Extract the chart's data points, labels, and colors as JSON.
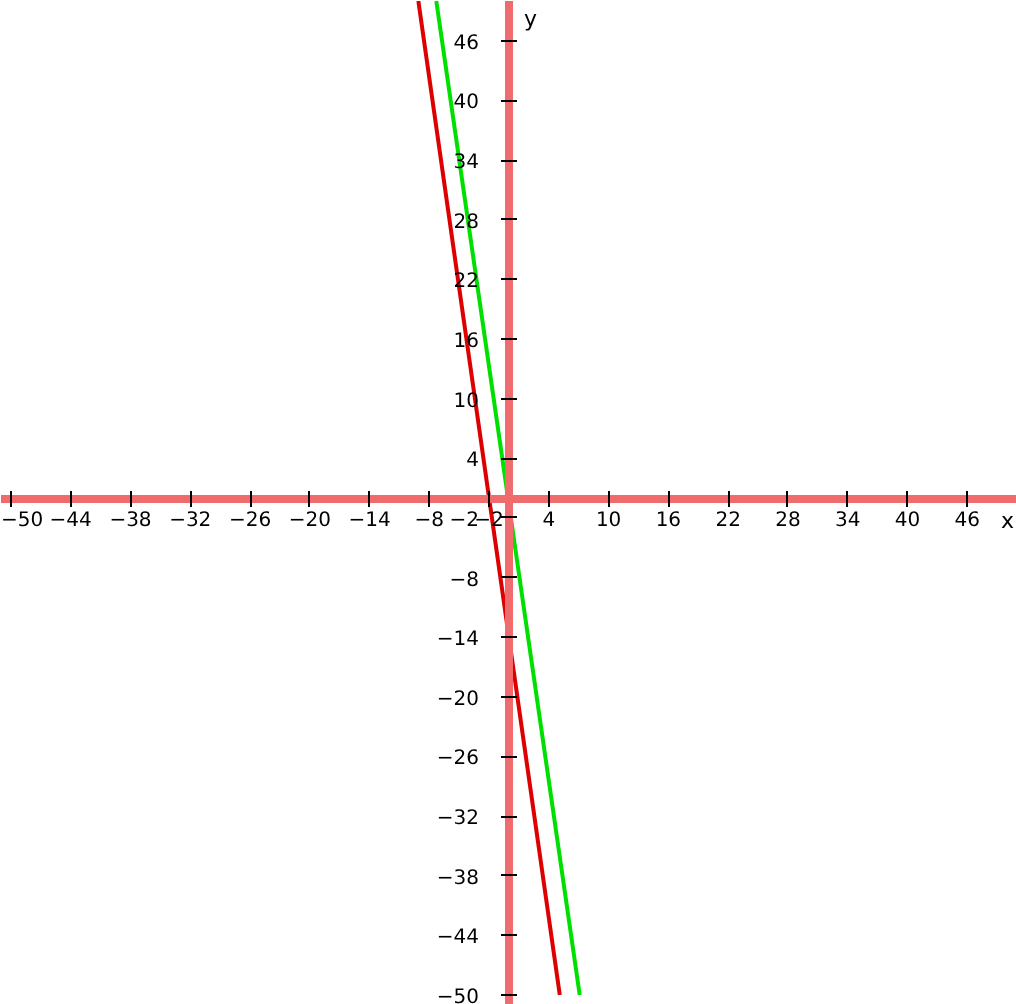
{
  "chart_data": {
    "type": "line",
    "xlabel": "x",
    "ylabel": "y",
    "xlim": [
      -51,
      51
    ],
    "ylim": [
      -51,
      50
    ],
    "xticks": [
      -50,
      -44,
      -38,
      -32,
      -26,
      -20,
      -14,
      -8,
      -2,
      4,
      10,
      16,
      22,
      28,
      34,
      40,
      46
    ],
    "yticks": [
      -50,
      -44,
      -38,
      -32,
      -26,
      -20,
      -14,
      -8,
      -2,
      4,
      10,
      16,
      22,
      28,
      34,
      40,
      46
    ],
    "grid": false,
    "marker": "none",
    "line_style": "solid",
    "series": [
      {
        "color": "#dd0000",
        "x": [
          -9.1,
          5.1
        ],
        "values": [
          50,
          -50
        ]
      },
      {
        "color": "#00e000",
        "x": [
          -7.3,
          7.1
        ],
        "values": [
          50,
          -50
        ]
      }
    ]
  }
}
